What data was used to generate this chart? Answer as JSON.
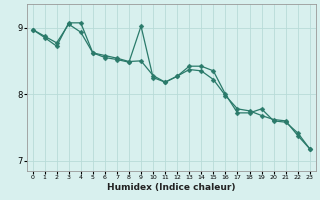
{
  "xlabel": "Humidex (Indice chaleur)",
  "bg_color": "#d8f0ee",
  "grid_color": "#b8dbd8",
  "line_color": "#2a7a6a",
  "series1_y": [
    8.97,
    8.87,
    8.77,
    9.05,
    8.93,
    8.62,
    8.58,
    8.54,
    8.49,
    8.5,
    8.28,
    8.18,
    8.27,
    8.37,
    8.35,
    8.22,
    7.98,
    7.78,
    7.75,
    7.68,
    7.62,
    7.6,
    7.38,
    7.18
  ],
  "series2_y": [
    8.97,
    8.85,
    8.72,
    9.07,
    9.07,
    8.62,
    8.55,
    8.52,
    8.48,
    9.02,
    8.25,
    8.18,
    8.27,
    8.42,
    8.42,
    8.35,
    8.0,
    7.72,
    7.72,
    7.78,
    7.6,
    7.58,
    7.42,
    7.18
  ],
  "x": [
    0,
    1,
    2,
    3,
    4,
    5,
    6,
    7,
    8,
    9,
    10,
    11,
    12,
    13,
    14,
    15,
    16,
    17,
    18,
    19,
    20,
    21,
    22,
    23
  ],
  "xlim": [
    -0.5,
    23.5
  ],
  "ylim": [
    6.85,
    9.35
  ],
  "yticks": [
    7,
    8,
    9
  ],
  "markersize": 2.5,
  "linewidth": 0.9
}
